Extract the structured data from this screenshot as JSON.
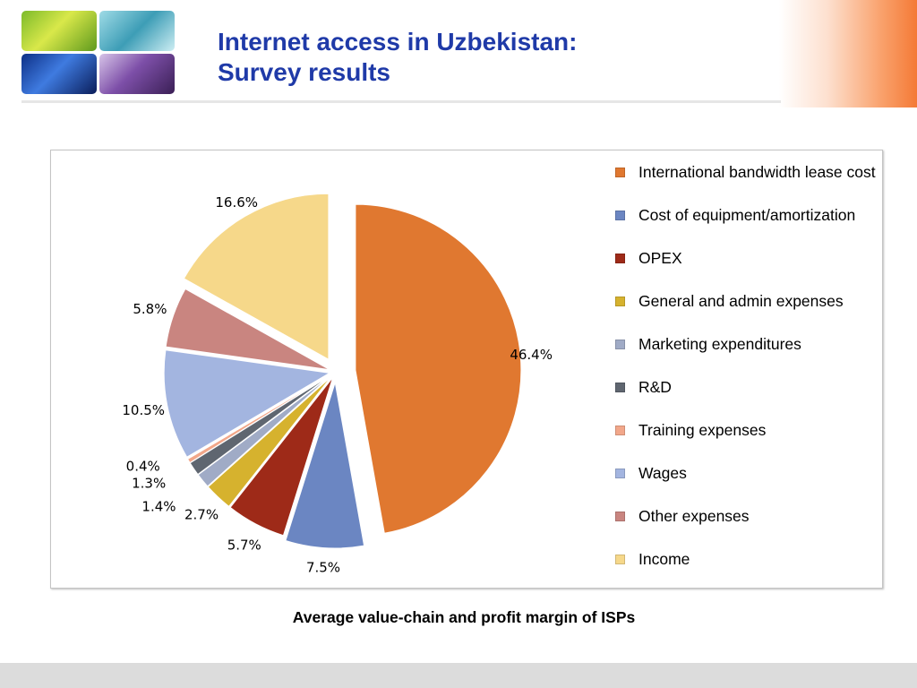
{
  "header": {
    "title_line1": "Internet access in Uzbekistan:",
    "title_line2": "Survey results"
  },
  "caption": "Average value-chain and profit margin of ISPs",
  "chart_data": {
    "type": "pie",
    "title": "",
    "legend_position": "right",
    "slices": [
      {
        "name": "International bandwidth lease cost",
        "value": 46.4,
        "label": "46.4%",
        "color": "#e07830"
      },
      {
        "name": "Cost of equipment/amortization",
        "value": 7.5,
        "label": "7.5%",
        "color": "#6b86c2"
      },
      {
        "name": "OPEX",
        "value": 5.7,
        "label": "5.7%",
        "color": "#9e2a18"
      },
      {
        "name": "General and admin expenses",
        "value": 2.7,
        "label": "2.7%",
        "color": "#d6b22e"
      },
      {
        "name": "Marketing expenditures",
        "value": 1.4,
        "label": "1.4%",
        "color": "#a0abc6"
      },
      {
        "name": "R&D",
        "value": 1.3,
        "label": "1.3%",
        "color": "#5f6670"
      },
      {
        "name": "Training expenses",
        "value": 0.4,
        "label": "0.4%",
        "color": "#f2a78a"
      },
      {
        "name": "Wages",
        "value": 10.5,
        "label": "10.5%",
        "color": "#a3b5e0"
      },
      {
        "name": "Other expenses",
        "value": 5.8,
        "label": "5.8%",
        "color": "#c98580"
      },
      {
        "name": "Income",
        "value": 16.6,
        "label": "16.6%",
        "color": "#f6d88a"
      }
    ],
    "legend": [
      {
        "text": "International bandwidth lease cost",
        "color": "#e07830"
      },
      {
        "text": "Cost of equipment/amortization",
        "color": "#6b86c2"
      },
      {
        "text": "OPEX",
        "color": "#9e2a18"
      },
      {
        "text": "General and admin expenses",
        "color": "#d6b22e"
      },
      {
        "text": "Marketing expenditures",
        "color": "#a0abc6"
      },
      {
        "text": "R&D",
        "color": "#5f6670"
      },
      {
        "text": "Training expenses",
        "color": "#f2a78a"
      },
      {
        "text": "Wages",
        "color": "#a3b5e0"
      },
      {
        "text": "Other expenses",
        "color": "#c98580"
      },
      {
        "text": "Income",
        "color": "#f6d88a"
      }
    ]
  }
}
